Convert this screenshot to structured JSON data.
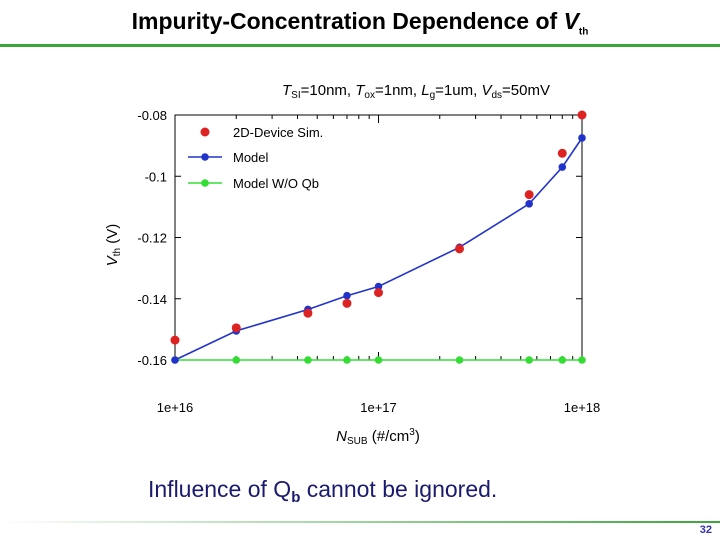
{
  "page": {
    "title_text": "Impurity-Concentration Dependence of ",
    "title_italic": "V",
    "title_sub": "th",
    "conclusion_pre": "Influence of Q",
    "conclusion_sub": "b",
    "conclusion_post": " cannot be ignored.",
    "page_number": "32",
    "accent_color": "#3aa63a"
  },
  "params": {
    "t_si_sym": "T",
    "t_si_sub": "SI",
    "t_si_val": "=10nm, ",
    "t_ox_sym": "T",
    "t_ox_sub": "ox",
    "t_ox_val": "=1nm, ",
    "lg_sym": "L",
    "lg_sub": "g",
    "lg_val": "=1um, ",
    "vds_sym": "V",
    "vds_sub": "ds",
    "vds_val": "=50mV"
  },
  "chart_data": {
    "type": "scatter",
    "x_scale": "log",
    "xlim": [
      1e+16,
      1e+18
    ],
    "ylim": [
      -0.16,
      -0.08
    ],
    "x_ticks": [
      {
        "value": 1e+16,
        "label": "1e+16"
      },
      {
        "value": 1e+17,
        "label": "1e+17"
      },
      {
        "value": 1e+18,
        "label": "1e+18"
      }
    ],
    "y_ticks": [
      {
        "value": -0.08,
        "label": "-0.08"
      },
      {
        "value": -0.1,
        "label": "-0.1"
      },
      {
        "value": -0.12,
        "label": "-0.12"
      },
      {
        "value": -0.14,
        "label": "-0.14"
      },
      {
        "value": -0.16,
        "label": "-0.16"
      }
    ],
    "xlabel_sym": "N",
    "xlabel_sub": "SUB",
    "xlabel_rest": " (#/cm",
    "xlabel_sup": "3",
    "xlabel_end": ")",
    "ylabel_sym": "V",
    "ylabel_sub": "th",
    "ylabel_rest": " (V)",
    "legend_position": "top-left",
    "series": [
      {
        "name": "2D-Device Sim.",
        "color": "#dd2222",
        "style": "markers",
        "x": [
          1e+16,
          2e+16,
          4.5e+16,
          7e+16,
          1e+17,
          2.5e+17,
          5.5e+17,
          8e+17,
          1e+18
        ],
        "y": [
          -0.1535,
          -0.1495,
          -0.1447,
          -0.1415,
          -0.138,
          -0.1237,
          -0.106,
          -0.0925,
          -0.08
        ]
      },
      {
        "name": "Model",
        "color": "#2233cc",
        "style": "line-markers",
        "x": [
          1e+16,
          2e+16,
          4.5e+16,
          7e+16,
          1e+17,
          2.5e+17,
          5.5e+17,
          8e+17,
          1e+18
        ],
        "y": [
          -0.16,
          -0.1505,
          -0.1435,
          -0.139,
          -0.136,
          -0.1232,
          -0.109,
          -0.097,
          -0.0875
        ]
      },
      {
        "name": "Model W/O Qb",
        "color": "#33dd33",
        "style": "line-markers",
        "x": [
          1e+16,
          2e+16,
          4.5e+16,
          7e+16,
          1e+17,
          2.5e+17,
          5.5e+17,
          8e+17,
          1e+18
        ],
        "y": [
          -0.16,
          -0.16,
          -0.16,
          -0.16,
          -0.16,
          -0.16,
          -0.16,
          -0.16,
          -0.16
        ]
      }
    ]
  }
}
